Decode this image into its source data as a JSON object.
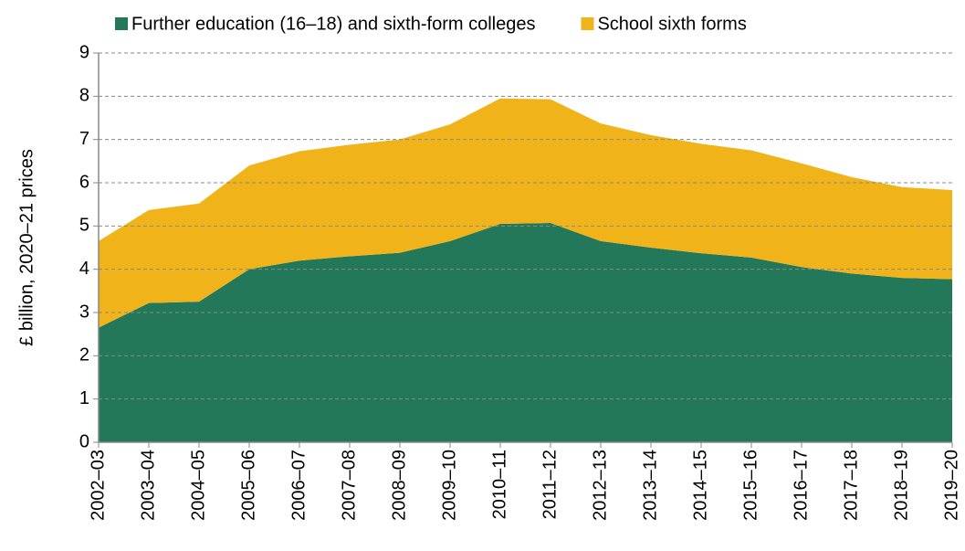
{
  "chart_data": {
    "type": "stacked_area",
    "ylabel": "£ billion, 2020–21 prices",
    "categories": [
      "2002–03",
      "2003–04",
      "2004–05",
      "2005–06",
      "2006–07",
      "2007–08",
      "2008–09",
      "2009–10",
      "2010–11",
      "2011–12",
      "2012–13",
      "2013–14",
      "2014–15",
      "2015–16",
      "2016–17",
      "2017–18",
      "2018–19",
      "2019–20"
    ],
    "series": [
      {
        "name": "Further education (16–18) and sixth-form colleges",
        "color": "#23785a",
        "values": [
          2.65,
          3.22,
          3.25,
          4.0,
          4.2,
          4.3,
          4.38,
          4.65,
          5.05,
          5.07,
          4.65,
          4.5,
          4.37,
          4.27,
          4.05,
          3.9,
          3.8,
          3.77
        ]
      },
      {
        "name": "School sixth forms",
        "color": "#f0b41a",
        "values": [
          2.0,
          2.15,
          2.27,
          2.4,
          2.53,
          2.58,
          2.62,
          2.7,
          2.9,
          2.86,
          2.72,
          2.6,
          2.53,
          2.48,
          2.4,
          2.23,
          2.1,
          2.06
        ]
      }
    ],
    "ylim": [
      0,
      9
    ],
    "yticks": [
      0,
      1,
      2,
      3,
      4,
      5,
      6,
      7,
      8,
      9
    ],
    "grid": true,
    "legend": "top"
  }
}
